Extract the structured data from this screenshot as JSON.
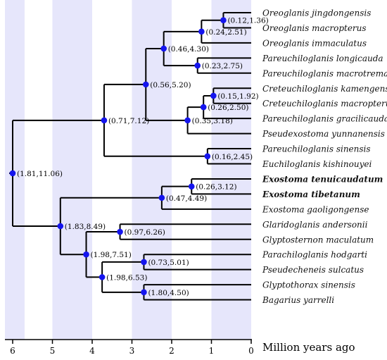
{
  "colors": {
    "band": "#e6e6fb",
    "node": "#1515ee",
    "line": "#000000"
  },
  "axis": {
    "label": "Million years ago",
    "ticks": [
      "6",
      "5",
      "4",
      "3",
      "2",
      "1",
      "0"
    ],
    "range_mya": [
      6.2,
      0
    ],
    "shaded_bands_mya": [
      [
        5.7,
        6.2
      ],
      [
        4,
        5
      ],
      [
        2,
        3
      ],
      [
        0,
        1
      ]
    ]
  },
  "tree": {
    "species": [
      {
        "name": "Oreoglanis jingdongensis",
        "bold": false
      },
      {
        "name": "Oreoglanis macropterus",
        "bold": false
      },
      {
        "name": "Oreoglanis immaculatus",
        "bold": false
      },
      {
        "name": "Pareuchiloglanis longicauda",
        "bold": false
      },
      {
        "name": "Pareuchiloglanis macrotrema",
        "bold": false
      },
      {
        "name": "Creteuchiloglanis kamengensis",
        "bold": false
      },
      {
        "name": "Creteuchiloglanis macropterus",
        "bold": false
      },
      {
        "name": "Pareuchiloglanis gracilicaudat",
        "bold": false
      },
      {
        "name": "Pseudexostoma yunnanensis",
        "bold": false
      },
      {
        "name": "Pareuchiloglanis sinensis",
        "bold": false
      },
      {
        "name": "Euchiloglanis kishinouyei",
        "bold": false
      },
      {
        "name": "Exostoma tenuicaudatum",
        "bold": true
      },
      {
        "name": "Exostoma tibetanum",
        "bold": true
      },
      {
        "name": "Exostoma gaoligongense",
        "bold": false
      },
      {
        "name": "Glaridoglanis andersonii",
        "bold": false
      },
      {
        "name": "Glyptosternon maculatum",
        "bold": false
      },
      {
        "name": "Parachiloglanis hodgarti",
        "bold": false
      },
      {
        "name": "Pseudecheneis sulcatus",
        "bold": false
      },
      {
        "name": "Glyptothorax sinensis",
        "bold": false
      },
      {
        "name": "Bagarius yarrelli",
        "bold": false
      }
    ],
    "nodes": [
      {
        "id": "root",
        "age": 6.0,
        "label": "(1.81,11.06)",
        "children": [
          "n_071",
          "n_183"
        ]
      },
      {
        "id": "n_071",
        "age": 3.7,
        "label": "(0.71,7.12)",
        "children": [
          "n_056",
          "n_016"
        ]
      },
      {
        "id": "n_056",
        "age": 2.65,
        "label": "(0.56,5.20)",
        "children": [
          "n_046",
          "n_035"
        ]
      },
      {
        "id": "n_046",
        "age": 2.2,
        "label": "(0.46,4.30)",
        "children": [
          "n_024",
          "n_023"
        ]
      },
      {
        "id": "n_024",
        "age": 1.25,
        "label": "(0.24,2.51)",
        "children": [
          "n_012",
          "s2"
        ]
      },
      {
        "id": "n_012",
        "age": 0.7,
        "label": "(0.12,1.36)",
        "children": [
          "s0",
          "s1"
        ]
      },
      {
        "id": "n_023",
        "age": 1.35,
        "label": "(0.23,2.75)",
        "children": [
          "s3",
          "s4"
        ]
      },
      {
        "id": "n_035",
        "age": 1.6,
        "label": "(0.35,3.18)",
        "children": [
          "n_026",
          "s8"
        ]
      },
      {
        "id": "n_026",
        "age": 1.2,
        "label": "(0.26,2.50)",
        "children": [
          "n_015",
          "s7"
        ]
      },
      {
        "id": "n_015",
        "age": 0.95,
        "label": "(0.15,1.92)",
        "children": [
          "s5",
          "s6"
        ]
      },
      {
        "id": "n_016",
        "age": 1.1,
        "label": "(0.16,2.45)",
        "children": [
          "s9",
          "s10"
        ]
      },
      {
        "id": "n_183",
        "age": 4.8,
        "label": "(1.83,8.49)",
        "children": [
          "n_047",
          "n_198a"
        ]
      },
      {
        "id": "n_047",
        "age": 2.25,
        "label": "(0.47,4.49)",
        "children": [
          "n_026b",
          "s13"
        ]
      },
      {
        "id": "n_026b",
        "age": 1.5,
        "label": "(0.26,3.12)",
        "children": [
          "s11",
          "s12"
        ]
      },
      {
        "id": "n_198a",
        "age": 4.15,
        "label": "(1.98,7.51)",
        "children": [
          "n_097",
          "n_198b"
        ]
      },
      {
        "id": "n_097",
        "age": 3.3,
        "label": "(0.97,6.26)",
        "children": [
          "s14",
          "s15"
        ]
      },
      {
        "id": "n_198b",
        "age": 3.75,
        "label": "(1.98,6.53)",
        "children": [
          "n_073",
          "n_180"
        ]
      },
      {
        "id": "n_073",
        "age": 2.7,
        "label": "(0.73,5.01)",
        "children": [
          "s16",
          "s17"
        ]
      },
      {
        "id": "n_180",
        "age": 2.7,
        "label": "(1.80,4.50)",
        "children": [
          "s18",
          "s19"
        ]
      }
    ]
  }
}
